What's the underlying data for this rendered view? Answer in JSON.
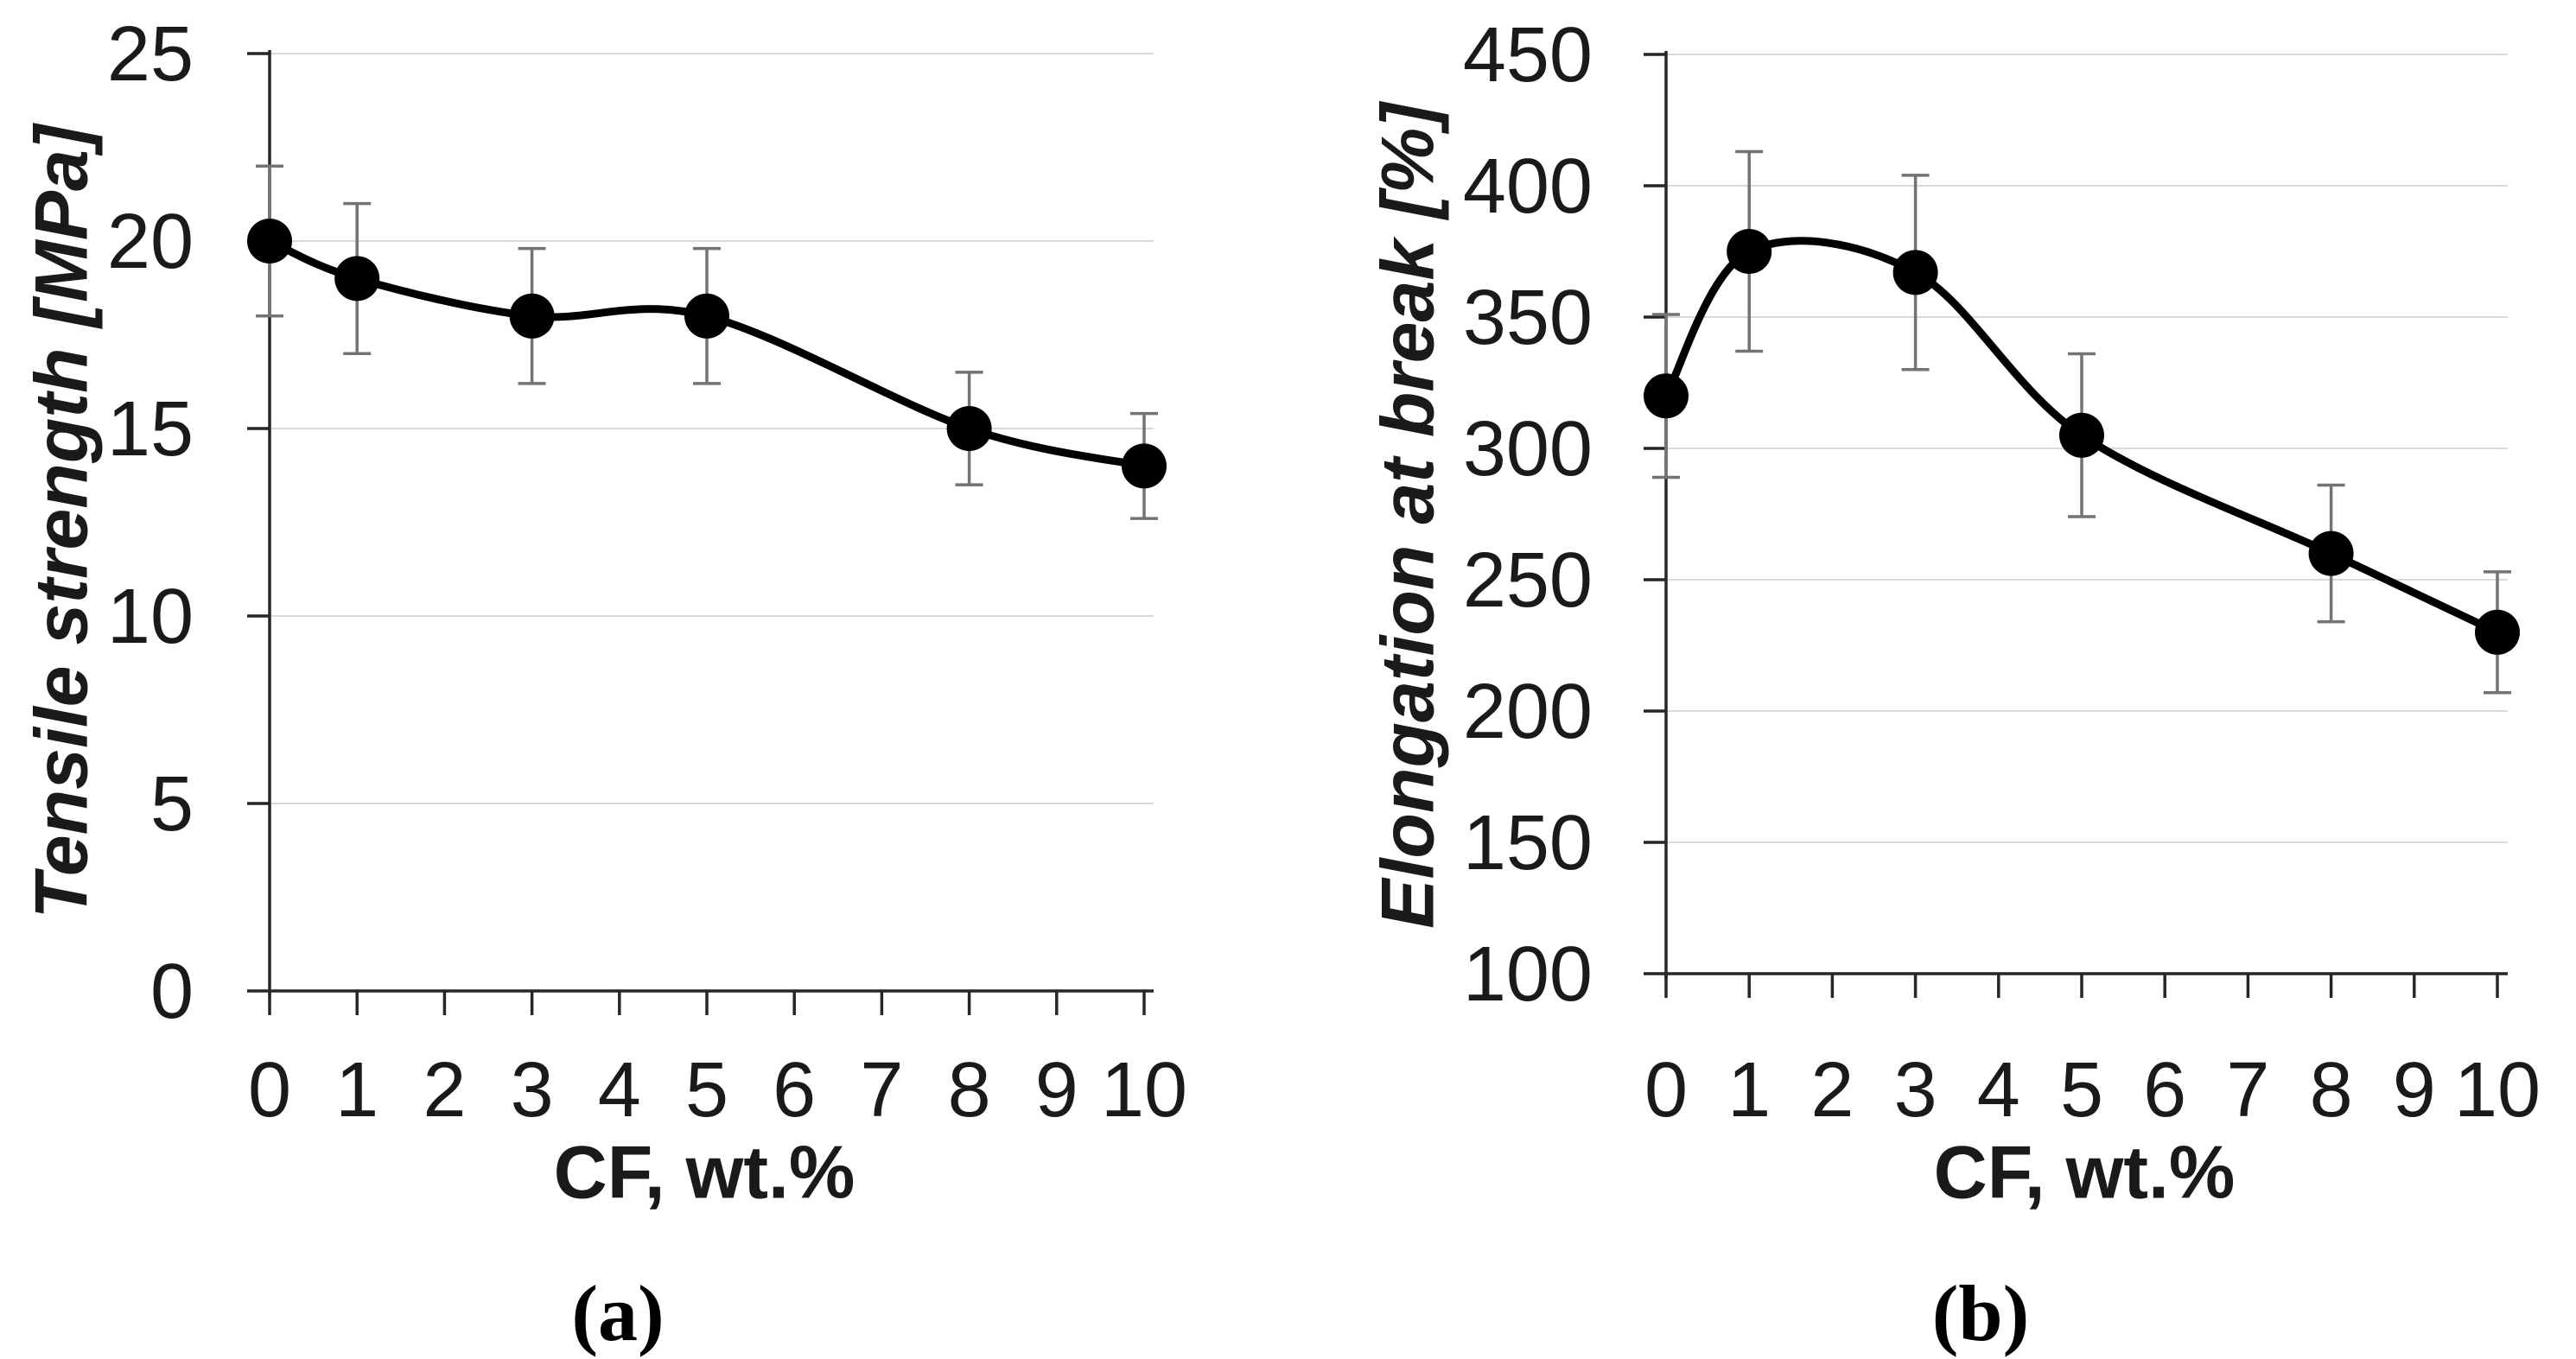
{
  "page": {
    "background": "#ffffff",
    "description": "Two-panel scientific figure of line charts with error bars"
  },
  "chart_data": [
    {
      "type": "line",
      "panel": "a",
      "caption": "(a)",
      "title": "",
      "xlabel": "CF, wt.%",
      "ylabel": "Tensile strength [MPa]",
      "x": [
        0,
        1,
        3,
        5,
        8,
        10
      ],
      "y": [
        20,
        19,
        18,
        18,
        15,
        14
      ],
      "yerr": [
        2.0,
        2.0,
        1.8,
        1.8,
        1.5,
        1.4
      ],
      "xlim": [
        0,
        10
      ],
      "ylim": [
        0,
        25
      ],
      "xticks": [
        0,
        1,
        2,
        3,
        4,
        5,
        6,
        7,
        8,
        9,
        10
      ],
      "yticks": [
        0,
        5,
        10,
        15,
        20,
        25
      ],
      "grid": "horizontal-only",
      "legend": "none",
      "marker": "filled-circle",
      "line_style": "smooth",
      "colors": {
        "line": "#000000",
        "marker": "#000000",
        "error_bar": "#737373",
        "axis": "#262626",
        "gridline": "#d9d9d9",
        "text": "#1a1a1a"
      }
    },
    {
      "type": "line",
      "panel": "b",
      "caption": "(b)",
      "title": "",
      "xlabel": "CF, wt.%",
      "ylabel": "Elongation at break [%]",
      "x": [
        0,
        1,
        3,
        5,
        8,
        10
      ],
      "y": [
        320,
        375,
        367,
        305,
        260,
        230
      ],
      "yerr": [
        31,
        38,
        37,
        31,
        26,
        23
      ],
      "xlim": [
        0,
        10
      ],
      "ylim": [
        100,
        450
      ],
      "xticks": [
        0,
        1,
        2,
        3,
        4,
        5,
        6,
        7,
        8,
        9,
        10
      ],
      "yticks": [
        100,
        150,
        200,
        250,
        300,
        350,
        400,
        450
      ],
      "grid": "horizontal-only",
      "legend": "none",
      "marker": "filled-circle",
      "line_style": "smooth",
      "colors": {
        "line": "#000000",
        "marker": "#000000",
        "error_bar": "#737373",
        "axis": "#262626",
        "gridline": "#d9d9d9",
        "text": "#1a1a1a"
      }
    }
  ]
}
